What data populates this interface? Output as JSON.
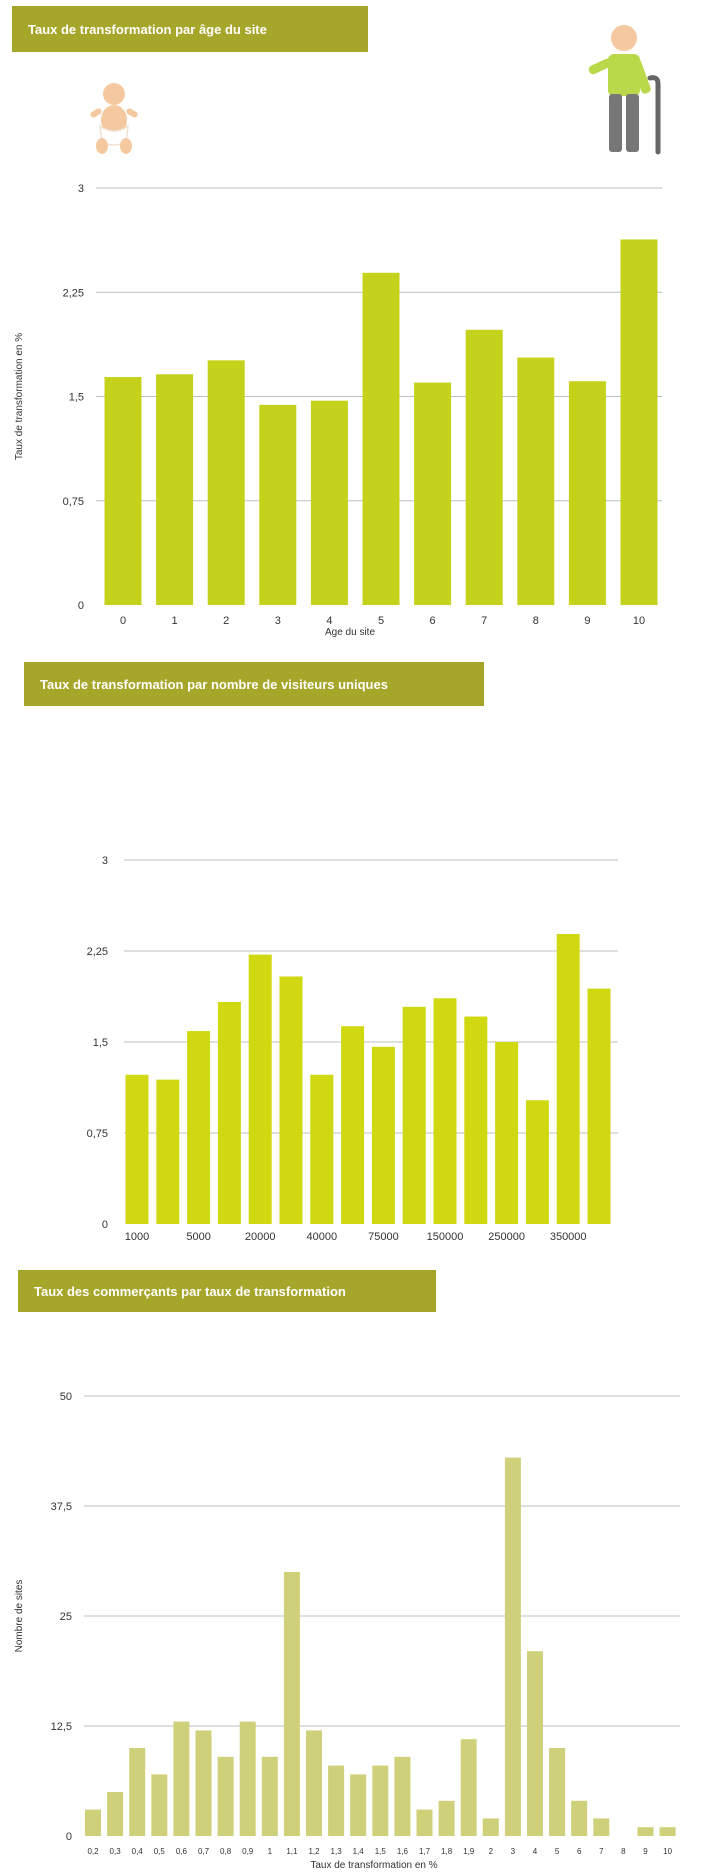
{
  "colors": {
    "banner": "#a6a62a",
    "bar1": "#c5d21c",
    "bar2": "#cfd810",
    "bar3": "#cfd17a",
    "grid": "#bfbfbf",
    "icon_skin": "#f5c9a0",
    "icon_shirt": "#b9d94a",
    "icon_pants": "#777777"
  },
  "icons": {
    "baby": "baby-icon",
    "elder": "elderly-person-icon"
  },
  "chart_data": [
    {
      "type": "bar",
      "title": "Taux de transformation par âge du site",
      "xlabel": "Age du site",
      "ylabel": "Taux de transformation en %",
      "ylim": [
        0,
        3
      ],
      "yticks": [
        "0",
        "0,75",
        "1,5",
        "2,25",
        "3"
      ],
      "categories": [
        "0",
        "1",
        "2",
        "3",
        "4",
        "5",
        "6",
        "7",
        "8",
        "9",
        "10"
      ],
      "values": [
        1.64,
        1.66,
        1.76,
        1.44,
        1.47,
        2.39,
        1.6,
        1.98,
        1.78,
        1.61,
        2.63
      ],
      "grid": true
    },
    {
      "type": "bar",
      "title": "Taux de transformation par nombre de visiteurs uniques",
      "xlabel": "",
      "ylabel": "",
      "ylim": [
        0,
        3
      ],
      "yticks": [
        "0",
        "0,75",
        "1,5",
        "2,25",
        "3"
      ],
      "categories": [
        "1000",
        "",
        "5000",
        "",
        "20000",
        "",
        "40000",
        "",
        "75000",
        "",
        "150000",
        "",
        "250000",
        "",
        "350000",
        ""
      ],
      "values": [
        1.23,
        1.19,
        1.59,
        1.83,
        2.22,
        2.04,
        1.23,
        1.63,
        1.46,
        1.79,
        1.86,
        1.71,
        1.5,
        1.02,
        2.39,
        1.94
      ],
      "grid": true
    },
    {
      "type": "bar",
      "title": "Taux des commerçants par taux de transformation",
      "xlabel": "Taux de transformation en %",
      "ylabel": "Nombre de sites",
      "ylim": [
        0,
        50
      ],
      "yticks": [
        "0",
        "12,5",
        "25",
        "37,5",
        "50"
      ],
      "categories": [
        "0,2",
        "0,3",
        "0,4",
        "0,5",
        "0,6",
        "0,7",
        "0,8",
        "0,9",
        "1",
        "1,1",
        "1,2",
        "1,3",
        "1,4",
        "1,5",
        "1,6",
        "1,7",
        "1,8",
        "1,9",
        "2",
        "3",
        "4",
        "5",
        "6",
        "7",
        "8",
        "9",
        "10"
      ],
      "values": [
        3,
        5,
        10,
        7,
        13,
        12,
        9,
        13,
        9,
        30,
        12,
        8,
        7,
        8,
        9,
        3,
        4,
        11,
        2,
        43,
        21,
        10,
        4,
        2,
        0,
        1,
        1
      ],
      "grid": true
    }
  ]
}
